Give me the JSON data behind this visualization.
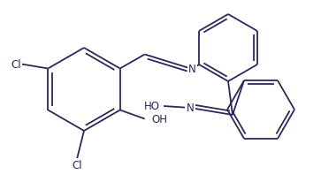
{
  "bg_color": "#ffffff",
  "bond_color": "#2a2a5a",
  "label_color": "#2a2a5a",
  "bond_width": 1.3,
  "font_size": 8.5,
  "figsize": [
    3.63,
    2.07
  ],
  "dpi": 100,
  "xlim": [
    0,
    363
  ],
  "ylim": [
    0,
    207
  ]
}
